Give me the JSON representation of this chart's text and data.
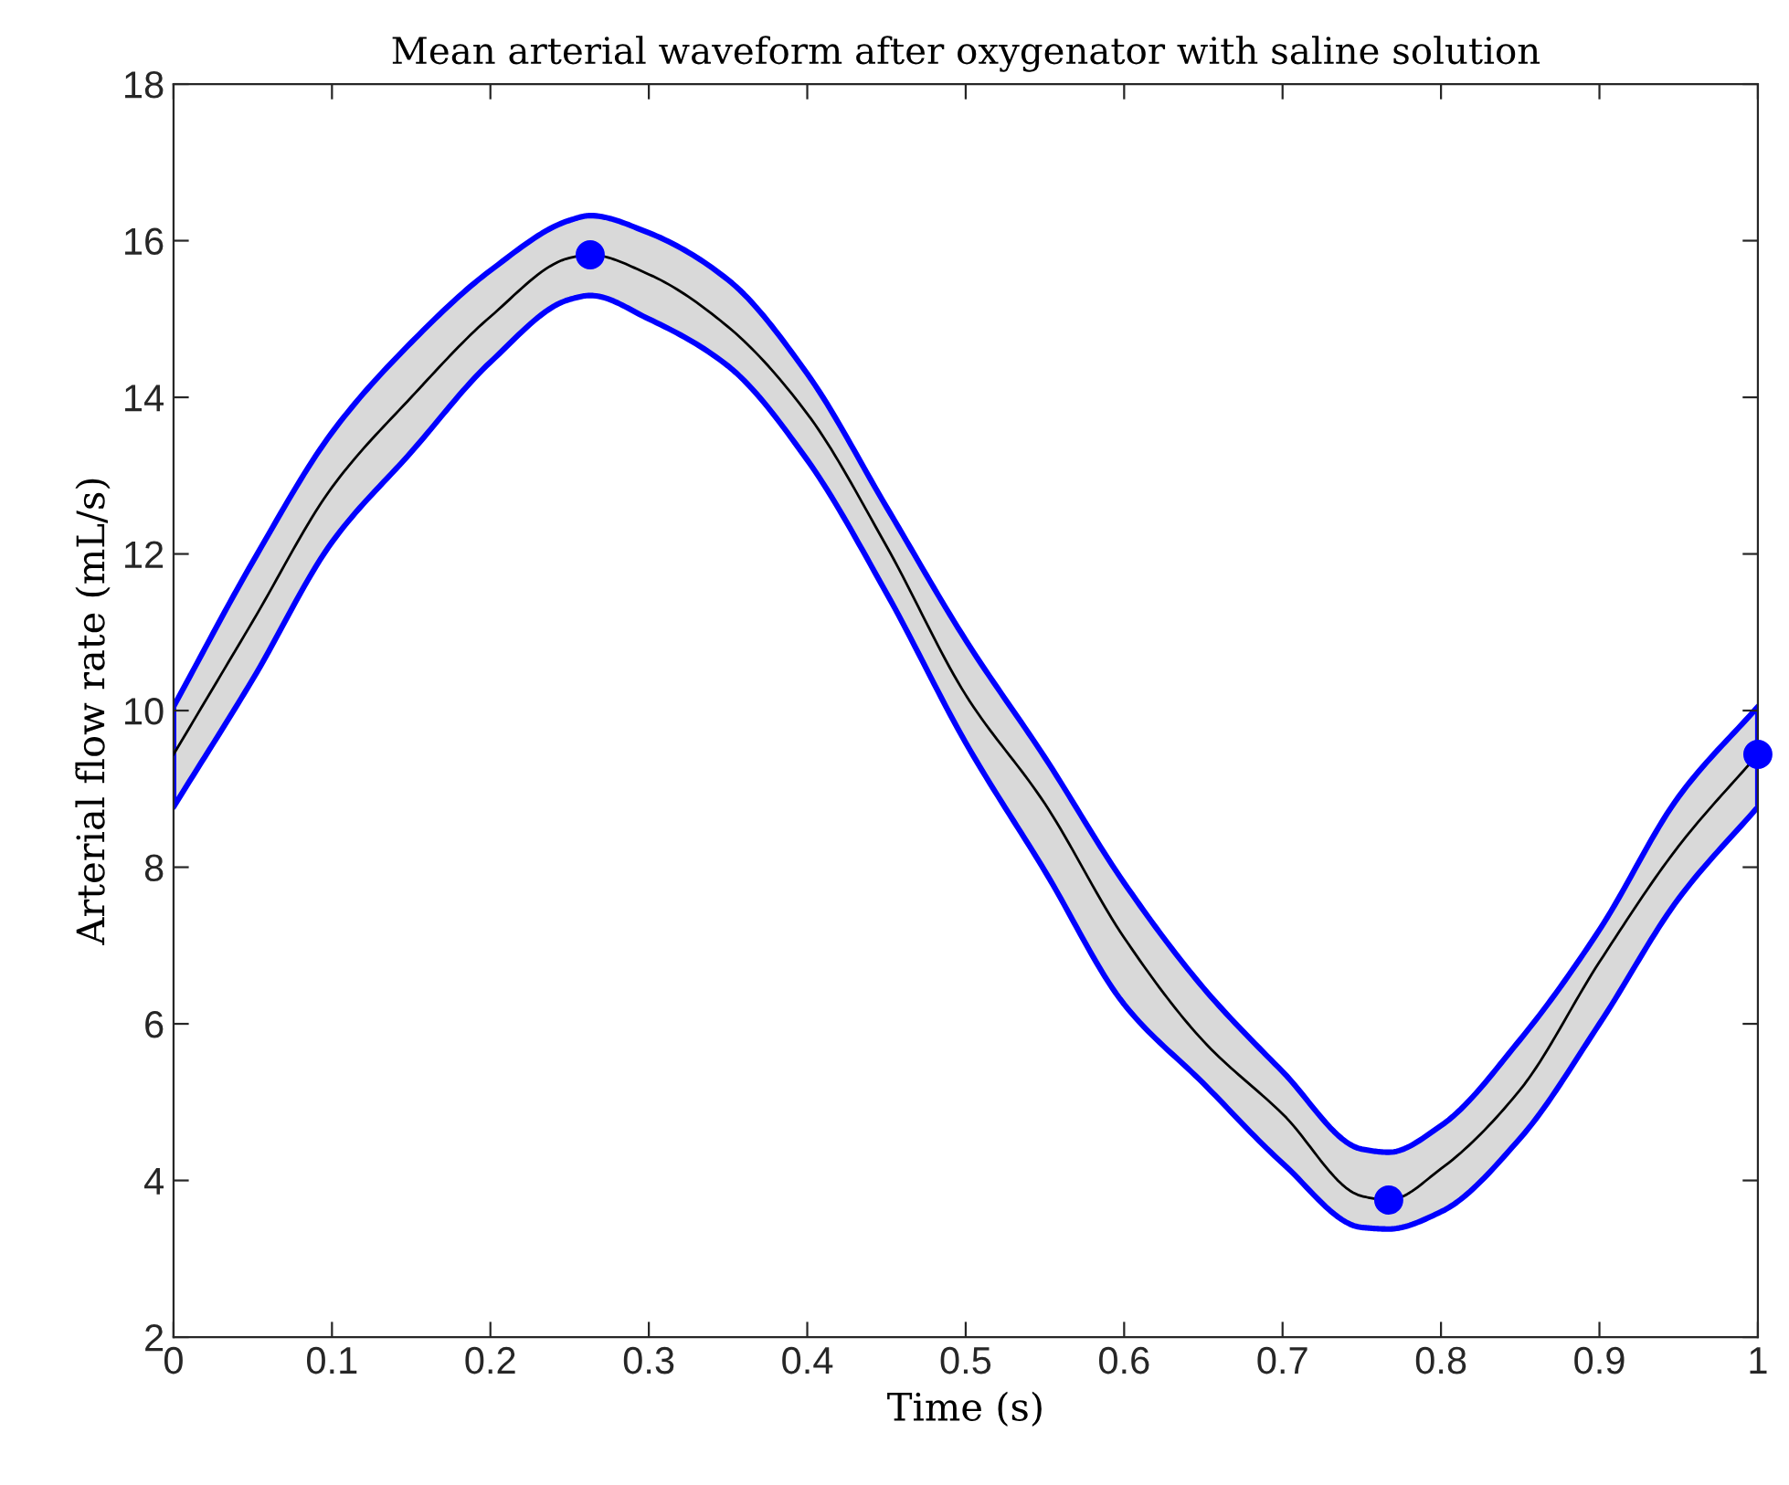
{
  "chart_data": {
    "type": "line",
    "title": "Mean arterial waveform after oxygenator with saline solution",
    "xlabel": "Time (s)",
    "ylabel": "Arterial flow rate (mL/s)",
    "xlim": [
      0,
      1
    ],
    "ylim": [
      2,
      18
    ],
    "xticks": [
      0,
      0.1,
      0.2,
      0.3,
      0.4,
      0.5,
      0.6,
      0.7,
      0.8,
      0.9,
      1
    ],
    "yticks": [
      2,
      4,
      6,
      8,
      10,
      12,
      14,
      16,
      18
    ],
    "grid": false,
    "legend": false,
    "series": [
      {
        "color": "#000000",
        "marker": "none",
        "line_style": "solid",
        "x": [
          0,
          0.05,
          0.1,
          0.15,
          0.2,
          0.25,
          0.263,
          0.3,
          0.35,
          0.4,
          0.45,
          0.5,
          0.55,
          0.6,
          0.65,
          0.7,
          0.75,
          0.767,
          0.8,
          0.85,
          0.9,
          0.95,
          1
        ],
        "values": [
          9.44,
          11.14,
          12.85,
          14.0,
          15.03,
          15.78,
          15.82,
          15.57,
          14.9,
          13.79,
          12.1,
          10.2,
          8.81,
          7.1,
          5.78,
          4.85,
          3.8,
          3.75,
          4.15,
          5.16,
          6.79,
          8.27,
          9.44
        ],
        "upper": [
          10.05,
          11.9,
          13.55,
          14.7,
          15.62,
          16.26,
          16.32,
          16.1,
          15.5,
          14.3,
          12.6,
          10.9,
          9.4,
          7.8,
          6.46,
          5.39,
          4.4,
          4.36,
          4.7,
          5.8,
          7.2,
          8.9,
          10.05
        ],
        "lower": [
          8.77,
          10.4,
          12.15,
          13.3,
          14.45,
          15.25,
          15.3,
          15.0,
          14.4,
          13.2,
          11.5,
          9.59,
          7.95,
          6.25,
          5.24,
          4.22,
          3.4,
          3.38,
          3.6,
          4.54,
          6.0,
          7.6,
          8.77
        ]
      },
      {
        "type": "scatter",
        "color": "#0000ff",
        "marker": "circle",
        "x": [
          0.263,
          0.767,
          1.0
        ],
        "values": [
          15.82,
          3.75,
          9.44
        ]
      }
    ]
  }
}
